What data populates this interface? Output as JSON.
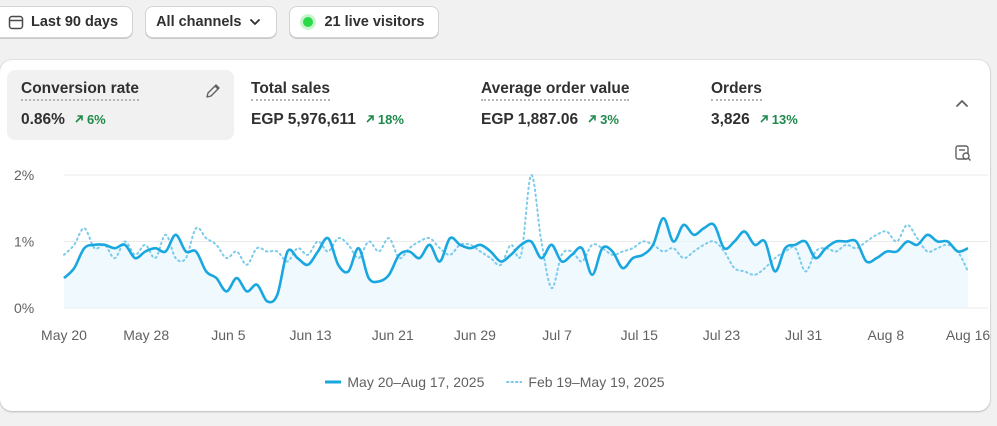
{
  "toolbar": {
    "date_range": "Last 90 days",
    "channels": "All channels",
    "live_visitors": "21 live visitors"
  },
  "metrics": [
    {
      "label": "Conversion rate",
      "value": "0.86%",
      "change": "6%"
    },
    {
      "label": "Total sales",
      "value": "EGP 5,976,611",
      "change": "18%"
    },
    {
      "label": "Average order value",
      "value": "EGP 1,887.06",
      "change": "3%"
    },
    {
      "label": "Orders",
      "value": "3,826",
      "change": "13%"
    }
  ],
  "colors": {
    "primary_series": "#1aa7e0",
    "comparison_series": "#7ccbeb",
    "positive_change": "#1f8a4c"
  },
  "chart_data": {
    "type": "line",
    "y_ticks": [
      "2%",
      "1%",
      "0%"
    ],
    "ylim": [
      0,
      2
    ],
    "x_ticks": [
      "May 20",
      "May 28",
      "Jun 5",
      "Jun 13",
      "Jun 21",
      "Jun 29",
      "Jul 7",
      "Jul 15",
      "Jul 23",
      "Jul 31",
      "Aug 8",
      "Aug 16"
    ],
    "x_days": 90,
    "legend_position": "bottom-center",
    "grid": true,
    "series": [
      {
        "name": "May 20–Aug 17, 2025",
        "style": "solid",
        "values": [
          0.45,
          0.6,
          0.9,
          0.95,
          0.95,
          0.9,
          0.95,
          0.75,
          0.85,
          0.9,
          0.85,
          1.1,
          0.85,
          0.85,
          0.55,
          0.45,
          0.25,
          0.45,
          0.25,
          0.35,
          0.1,
          0.2,
          0.85,
          0.75,
          0.65,
          0.85,
          1.05,
          0.65,
          0.55,
          0.9,
          0.45,
          0.4,
          0.5,
          0.8,
          0.85,
          0.75,
          0.95,
          0.7,
          1.05,
          0.95,
          0.9,
          0.95,
          0.85,
          0.7,
          0.8,
          0.95,
          1.0,
          0.75,
          0.95,
          0.7,
          0.8,
          0.9,
          0.5,
          0.9,
          0.85,
          0.6,
          0.75,
          0.8,
          0.95,
          1.35,
          1.0,
          1.25,
          1.1,
          1.2,
          1.25,
          0.9,
          1.0,
          1.15,
          0.95,
          1.0,
          0.55,
          0.9,
          0.95,
          1.0,
          0.75,
          0.9,
          1.0,
          1.0,
          1.0,
          0.7,
          0.75,
          0.85,
          0.85,
          1.0,
          0.95,
          1.1,
          1.0,
          1.0,
          0.85,
          0.9
        ]
      },
      {
        "name": "Feb 19–May 19, 2025",
        "style": "dotted",
        "values": [
          0.8,
          0.95,
          1.2,
          0.9,
          0.95,
          0.75,
          1.0,
          0.8,
          0.95,
          0.75,
          1.1,
          0.75,
          0.75,
          1.2,
          1.05,
          0.95,
          0.75,
          0.85,
          0.65,
          0.9,
          0.85,
          0.85,
          0.7,
          0.9,
          0.8,
          1.0,
          0.85,
          1.05,
          0.95,
          0.75,
          1.0,
          0.85,
          1.05,
          0.75,
          0.9,
          1.0,
          1.05,
          0.9,
          0.8,
          0.95,
          0.95,
          0.85,
          0.75,
          0.65,
          0.95,
          0.8,
          2.0,
          1.0,
          0.3,
          0.8,
          0.85,
          0.7,
          0.95,
          0.9,
          0.8,
          0.85,
          0.9,
          1.0,
          0.95,
          0.85,
          0.9,
          0.75,
          0.85,
          0.95,
          1.0,
          0.85,
          0.6,
          0.55,
          0.5,
          0.6,
          0.75,
          0.85,
          0.9,
          0.55,
          0.85,
          0.9,
          0.85,
          0.95,
          0.9,
          1.0,
          1.1,
          1.15,
          1.0,
          1.25,
          1.05,
          0.85,
          0.9,
          0.95,
          0.85,
          0.55
        ]
      }
    ]
  }
}
